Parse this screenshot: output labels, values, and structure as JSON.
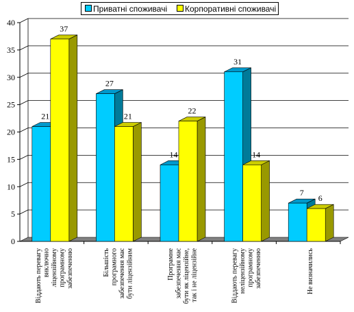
{
  "colors": {
    "series1": "#00CCFF",
    "series1_side": "#007A99",
    "series1_top": "#0099CC",
    "series2": "#FFFF00",
    "series2_side": "#999900",
    "series2_top": "#CCCC00",
    "floor": "#808080",
    "grid": "#000000"
  },
  "chart_data": {
    "type": "bar",
    "title": "",
    "xlabel": "",
    "ylabel": "",
    "ylim": [
      0,
      40
    ],
    "yticks": [
      "0",
      "5",
      "10",
      "15",
      "20",
      "25",
      "30",
      "35",
      "40"
    ],
    "grid": true,
    "legend_position": "top",
    "categories": [
      [
        "Віддають перевагу",
        "виключно",
        "ліцензійному",
        "програмному",
        "забезпеченню"
      ],
      [
        "Більшість",
        "програмного",
        "забезпечення має",
        "бути ліцензійним"
      ],
      [
        "Програмне",
        "забезпечення має",
        "бути як ліцензійне,",
        "так і не ліцензійне"
      ],
      [
        "Віддають перевагу",
        "неліцензійному",
        "програмному",
        "забезпеченню"
      ],
      [
        "Не визначились"
      ]
    ],
    "series": [
      {
        "name": "Приватні споживачі",
        "values": [
          21,
          27,
          14,
          31,
          7
        ]
      },
      {
        "name": "Корпоративні споживачі",
        "values": [
          37,
          21,
          22,
          14,
          6
        ]
      }
    ],
    "value_labels": [
      [
        "21",
        "27",
        "14",
        "31",
        "7"
      ],
      [
        "37",
        "21",
        "22",
        "14",
        "6"
      ]
    ]
  }
}
